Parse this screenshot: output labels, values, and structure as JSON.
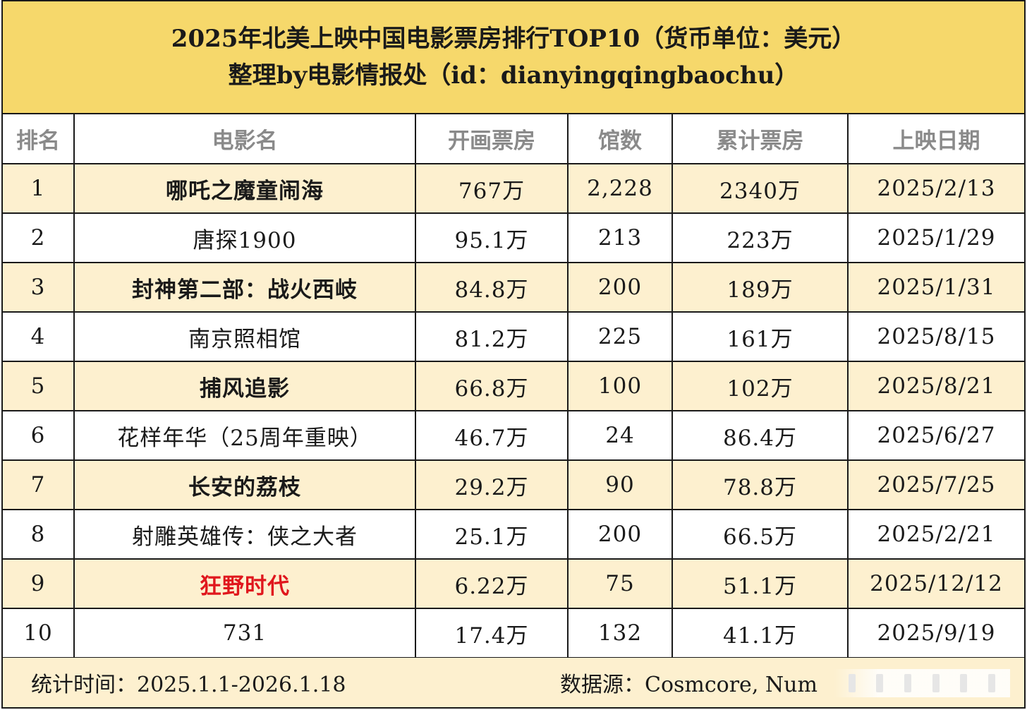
{
  "title": {
    "line1": "2025年北美上映中国电影票房排行TOP10（货币单位：美元）",
    "line2": "整理by电影情报处（id：dianyingqingbaochu）"
  },
  "columns": [
    "排名",
    "电影名",
    "开画票房",
    "馆数",
    "累计票房",
    "上映日期"
  ],
  "rows": [
    {
      "rank": "1",
      "movie": "哪吒之魔童闹海",
      "opening": "767万",
      "theaters": "2,228",
      "total": "2340万",
      "date": "2025/2/13"
    },
    {
      "rank": "2",
      "movie": "唐探1900",
      "opening": "95.1万",
      "theaters": "213",
      "total": "223万",
      "date": "2025/1/29"
    },
    {
      "rank": "3",
      "movie": "封神第二部：战火西岐",
      "opening": "84.8万",
      "theaters": "200",
      "total": "189万",
      "date": "2025/1/31"
    },
    {
      "rank": "4",
      "movie": "南京照相馆",
      "opening": "81.2万",
      "theaters": "225",
      "total": "161万",
      "date": "2025/8/15"
    },
    {
      "rank": "5",
      "movie": "捕风追影",
      "opening": "66.8万",
      "theaters": "100",
      "total": "102万",
      "date": "2025/8/21"
    },
    {
      "rank": "6",
      "movie": "花样年华（25周年重映）",
      "opening": "46.7万",
      "theaters": "24",
      "total": "86.4万",
      "date": "2025/6/27"
    },
    {
      "rank": "7",
      "movie": "长安的荔枝",
      "opening": "29.2万",
      "theaters": "90",
      "total": "78.8万",
      "date": "2025/7/25"
    },
    {
      "rank": "8",
      "movie": "射雕英雄传：侠之大者",
      "opening": "25.1万",
      "theaters": "200",
      "total": "66.5万",
      "date": "2025/2/21"
    },
    {
      "rank": "9",
      "movie": "狂野时代",
      "opening": "6.22万",
      "theaters": "75",
      "total": "51.1万",
      "date": "2025/12/12"
    },
    {
      "rank": "10",
      "movie": "731",
      "opening": "17.4万",
      "theaters": "132",
      "total": "41.1万",
      "date": "2025/9/19"
    }
  ],
  "highlight_color": "#e0171d",
  "header_band_color": "#f6d86b",
  "stripe_color": "#fdf0cf",
  "footer": {
    "stat_time": "统计时间：2025.1.1-2026.1.18",
    "data_source": "数据源：Cosmcore, Num"
  }
}
